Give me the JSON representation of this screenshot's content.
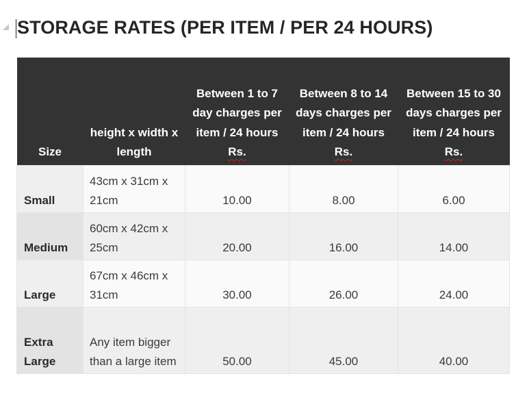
{
  "page": {
    "title": "STORAGE RATES (PER ITEM / PER 24 HOURS)"
  },
  "table": {
    "headers": {
      "size": "Size",
      "dimensions": "height x width x length",
      "col1": "Between 1 to 7 day charges per item / 24 hours",
      "col2": "Between 8 to 14 days charges per item / 24 hours",
      "col3": "Between 15 to 30 days charges per item / 24 hours",
      "currency": "Rs."
    },
    "rows": [
      {
        "size": "Small",
        "dimensions": "43cm x 31cm x 21cm",
        "rate_1_7": "10.00",
        "rate_8_14": "8.00",
        "rate_15_30": "6.00"
      },
      {
        "size": "Medium",
        "dimensions": "60cm x 42cm x 25cm",
        "rate_1_7": "20.00",
        "rate_8_14": "16.00",
        "rate_15_30": "14.00"
      },
      {
        "size": "Large",
        "dimensions": "67cm x 46cm x 31cm",
        "rate_1_7": "30.00",
        "rate_8_14": "26.00",
        "rate_15_30": "24.00"
      },
      {
        "size": "Extra Large",
        "dimensions": "Any item bigger than a large item",
        "rate_1_7": "50.00",
        "rate_8_14": "45.00",
        "rate_15_30": "40.00"
      }
    ]
  },
  "colors": {
    "header_background": "#333333",
    "header_text": "#ffffff",
    "spellcheck_underline": "#cc2222"
  }
}
